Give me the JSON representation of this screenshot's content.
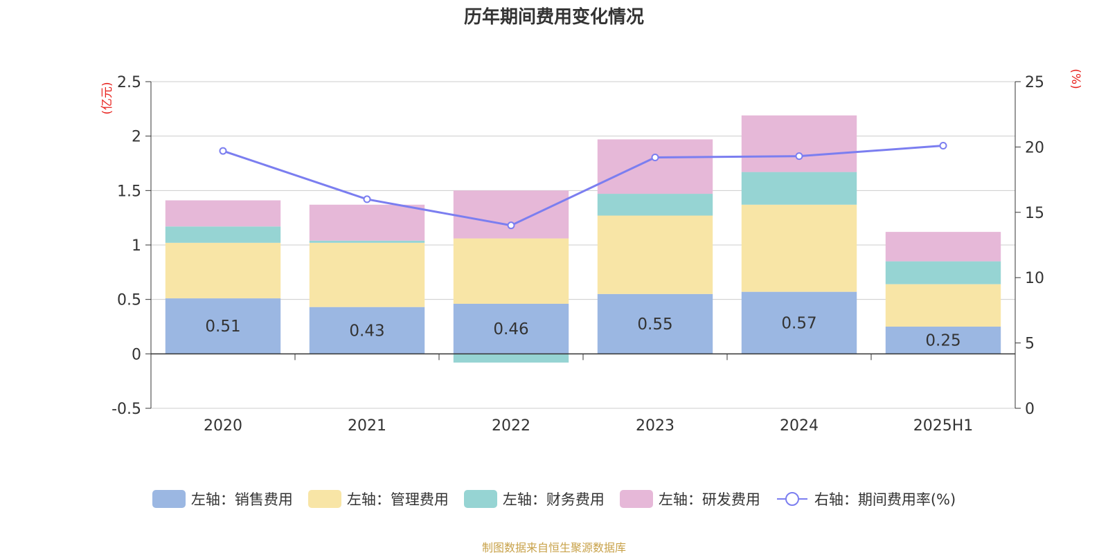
{
  "title": "历年期间费用变化情况",
  "source_note": "制图数据来自恒生聚源数据库",
  "colors": {
    "sales": "#9bb7e2",
    "admin": "#f8e5a6",
    "finance": "#96d4d3",
    "rnd": "#e6b8d8",
    "rate_line": "#7b7ef0",
    "axis_unit": "#e8211d"
  },
  "chart_data": {
    "type": "bar",
    "stacked": true,
    "categories": [
      "2020",
      "2021",
      "2022",
      "2023",
      "2024",
      "2025H1"
    ],
    "left_axis": {
      "unit_label": "(亿元)",
      "ylim": [
        -0.5,
        2.5
      ],
      "ticks": [
        "-0.5",
        "0",
        "0.5",
        "1",
        "1.5",
        "2",
        "2.5"
      ]
    },
    "right_axis": {
      "unit_label": "(%)",
      "ylim": [
        0,
        25
      ],
      "ticks": [
        "0",
        "5",
        "10",
        "15",
        "20",
        "25"
      ]
    },
    "series": [
      {
        "name": "左轴：销售费用",
        "key": "sales",
        "axis": "left",
        "values": [
          0.51,
          0.43,
          0.46,
          0.55,
          0.57,
          0.25
        ],
        "labels": [
          "0.51",
          "0.43",
          "0.46",
          "0.55",
          "0.57",
          "0.25"
        ]
      },
      {
        "name": "左轴：管理费用",
        "key": "admin",
        "axis": "left",
        "values": [
          0.51,
          0.59,
          0.6,
          0.72,
          0.8,
          0.39
        ]
      },
      {
        "name": "左轴：财务费用",
        "key": "finance",
        "axis": "left",
        "values": [
          0.15,
          0.02,
          -0.08,
          0.2,
          0.3,
          0.21
        ]
      },
      {
        "name": "左轴：研发费用",
        "key": "rnd",
        "axis": "left",
        "values": [
          0.24,
          0.33,
          0.44,
          0.5,
          0.52,
          0.27
        ]
      },
      {
        "name": "右轴：期间费用率(%)",
        "key": "rate_line",
        "axis": "right",
        "type": "line",
        "values": [
          19.7,
          16.0,
          14.0,
          19.2,
          19.3,
          20.1
        ]
      }
    ],
    "grid": true,
    "legend_position": "bottom"
  }
}
